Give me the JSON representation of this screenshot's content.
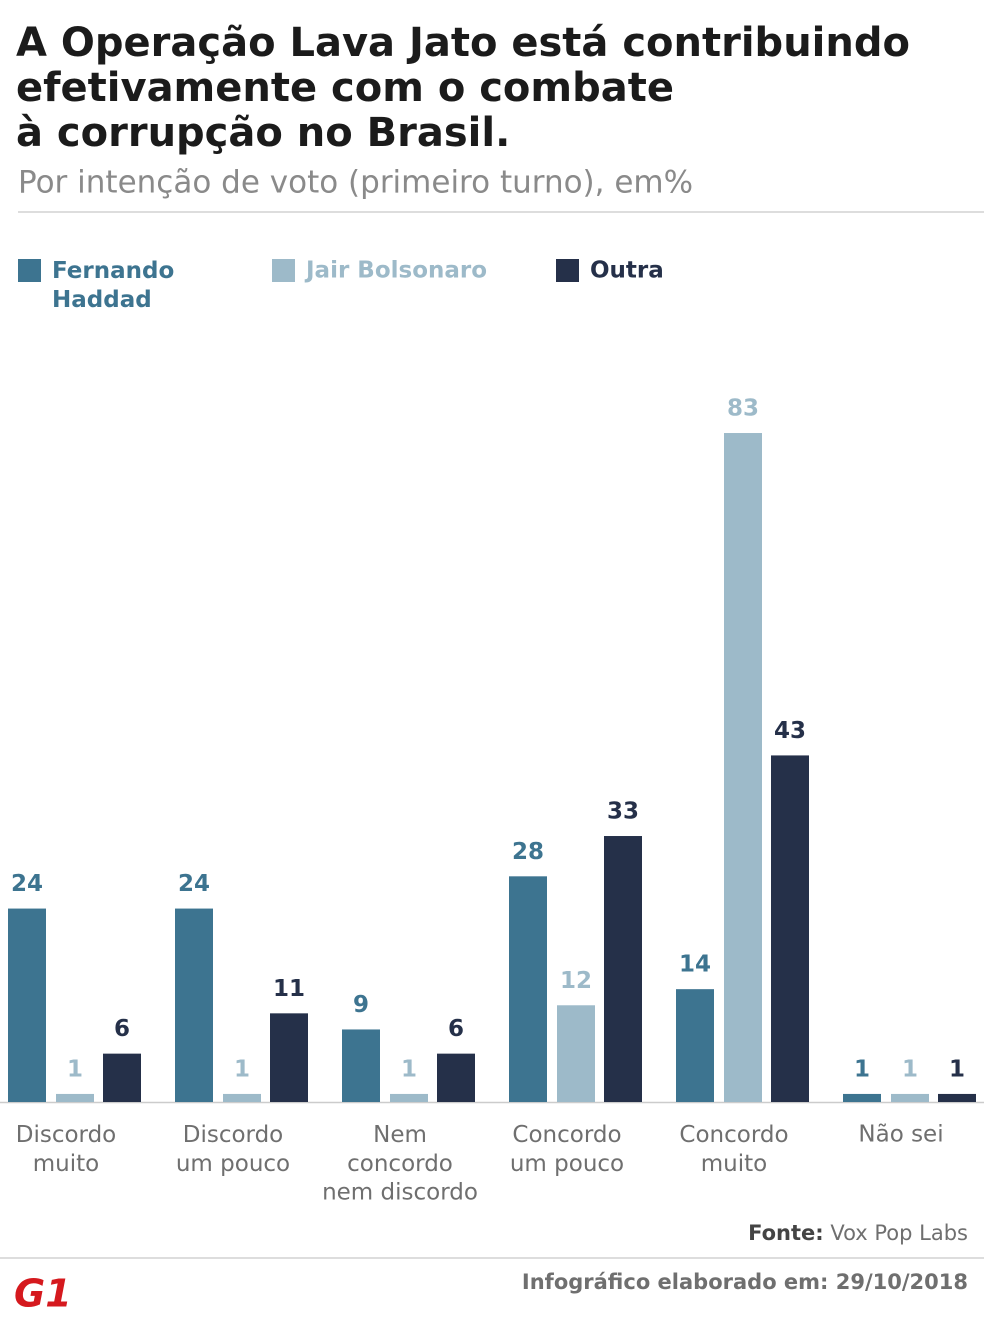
{
  "chart_data": {
    "type": "bar",
    "title": [
      "A Operação Lava Jato está contribuindo",
      "efetivamente com o combate",
      "à corrupção no Brasil."
    ],
    "subtitle": "Por intenção de voto (primeiro turno), em%",
    "categories": [
      "Discordo\nmuito",
      "Discordo\num pouco",
      "Nem\nconcordo\nnem discordo",
      "Concordo\num pouco",
      "Concordo\nmuito",
      "Não sei"
    ],
    "series": [
      {
        "name": "Fernando\nHaddad",
        "color": "#3d7490",
        "values": [
          24,
          24,
          9,
          28,
          14,
          1
        ]
      },
      {
        "name": "Jair Bolsonaro",
        "color": "#9dbac9",
        "values": [
          1,
          1,
          1,
          12,
          83,
          1
        ]
      },
      {
        "name": "Outra",
        "color": "#253049",
        "values": [
          6,
          11,
          6,
          33,
          43,
          1
        ]
      }
    ],
    "source_label": "Fonte:",
    "source": "Vox Pop Labs",
    "footer": "Infográfico elaborado em: 29/10/2018",
    "logo": "G1"
  }
}
